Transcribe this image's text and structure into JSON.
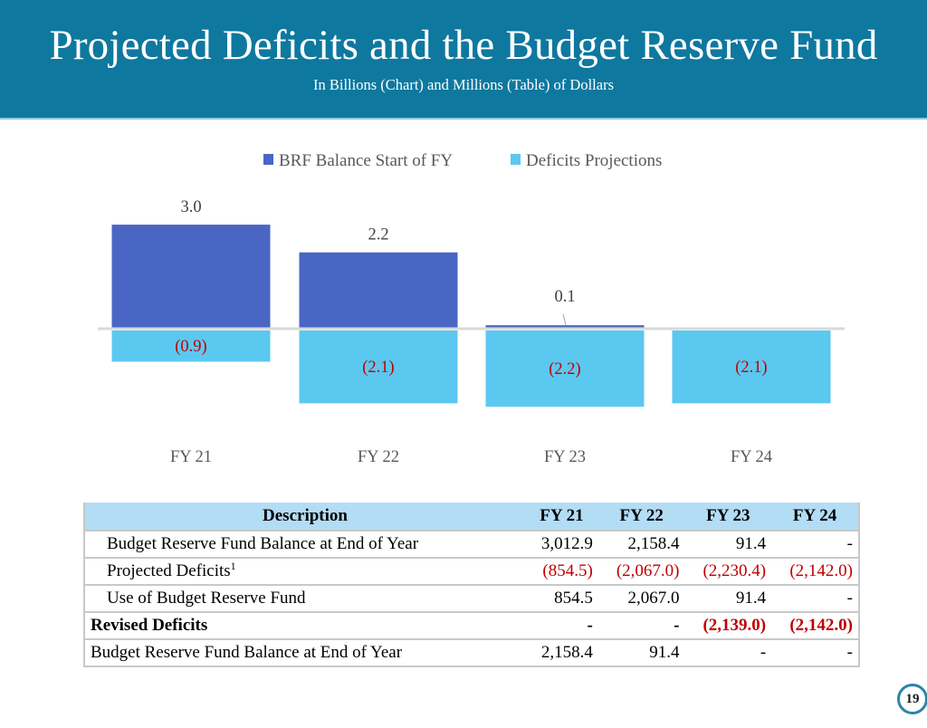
{
  "header": {
    "title": "Projected Deficits and the Budget Reserve Fund",
    "subtitle": "In Billions (Chart) and Millions (Table) of Dollars"
  },
  "chart_data": {
    "type": "bar",
    "stacked": true,
    "title": "",
    "xlabel": "",
    "ylabel": "",
    "categories": [
      "FY 21",
      "FY 22",
      "FY 23",
      "FY 24"
    ],
    "series": [
      {
        "name": "BRF Balance Start of FY",
        "color": "#4a66c4",
        "values": [
          3.0,
          2.2,
          0.1,
          null
        ],
        "labels": [
          "3.0",
          "2.2",
          "0.1",
          ""
        ]
      },
      {
        "name": "Deficits Projections",
        "color": "#5bc8f0",
        "values": [
          -0.9,
          -2.1,
          -2.2,
          -2.1
        ],
        "labels": [
          "(0.9)",
          "(2.1)",
          "(2.2)",
          "(2.1)"
        ]
      }
    ],
    "ylim": [
      -2.5,
      3.5
    ],
    "grid": false,
    "legend": "top-center",
    "label_colors": {
      "positive": "#404040",
      "negative": "#c00000"
    },
    "zero_line_color": "#d9d9d9"
  },
  "table": {
    "headers": [
      "Description",
      "FY 21",
      "FY 22",
      "FY 23",
      "FY 24"
    ],
    "rows": [
      {
        "label": "Budget Reserve Fund Balance at End of Year",
        "sup": "",
        "indent": true,
        "bold": false,
        "cells": [
          {
            "v": "3,012.9",
            "neg": false
          },
          {
            "v": "2,158.4",
            "neg": false
          },
          {
            "v": "91.4",
            "neg": false
          },
          {
            "v": "-",
            "neg": false
          }
        ]
      },
      {
        "label": "Projected Deficits",
        "sup": "1",
        "indent": true,
        "bold": false,
        "cells": [
          {
            "v": "(854.5)",
            "neg": true
          },
          {
            "v": "(2,067.0)",
            "neg": true
          },
          {
            "v": "(2,230.4)",
            "neg": true
          },
          {
            "v": "(2,142.0)",
            "neg": true
          }
        ]
      },
      {
        "label": "Use of Budget Reserve Fund",
        "sup": "",
        "indent": true,
        "bold": false,
        "cells": [
          {
            "v": "854.5",
            "neg": false
          },
          {
            "v": "2,067.0",
            "neg": false
          },
          {
            "v": "91.4",
            "neg": false
          },
          {
            "v": "-",
            "neg": false
          }
        ]
      },
      {
        "label": "Revised Deficits",
        "sup": "",
        "indent": false,
        "bold": true,
        "cells": [
          {
            "v": "-",
            "neg": false
          },
          {
            "v": "-",
            "neg": false
          },
          {
            "v": "(2,139.0)",
            "neg": true
          },
          {
            "v": "(2,142.0)",
            "neg": true
          }
        ]
      },
      {
        "label": "Budget Reserve Fund Balance at End of Year",
        "sup": "",
        "indent": false,
        "bold": false,
        "cells": [
          {
            "v": "2,158.4",
            "neg": false
          },
          {
            "v": "91.4",
            "neg": false
          },
          {
            "v": "-",
            "neg": false
          },
          {
            "v": "-",
            "neg": false
          }
        ]
      }
    ]
  },
  "footer": {
    "page_number": "19"
  }
}
